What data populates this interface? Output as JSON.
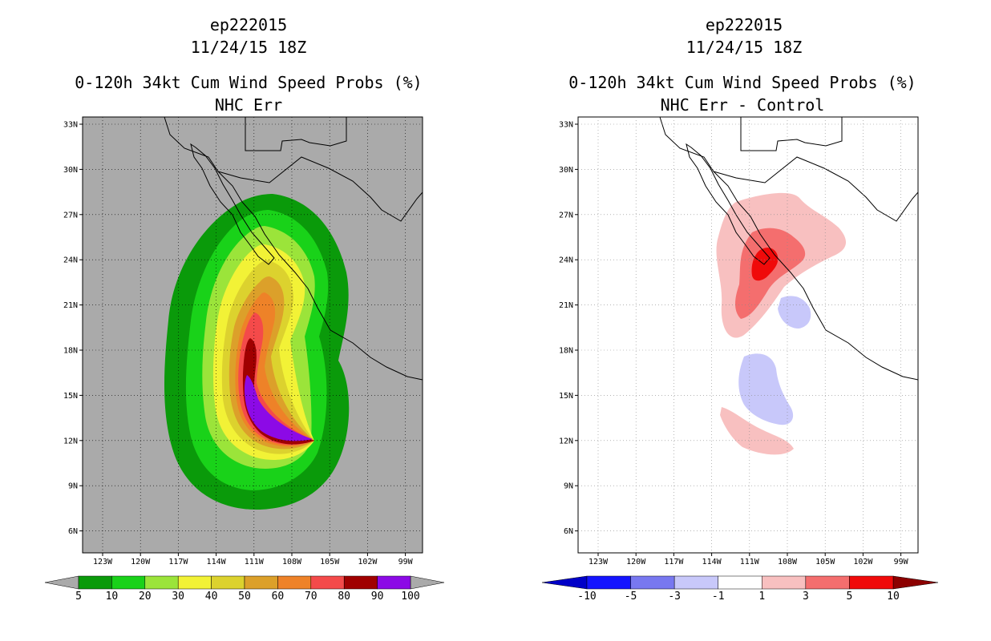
{
  "left_panel": {
    "storm_id": "ep222015",
    "datetime": "11/24/15 18Z",
    "title": "0-120h 34kt Cum Wind Speed Probs (%)",
    "subtitle": "NHC Err",
    "lat_labels": [
      "33N",
      "30N",
      "27N",
      "24N",
      "21N",
      "18N",
      "15N",
      "12N",
      "9N",
      "6N"
    ],
    "lon_labels": [
      "123W",
      "120W",
      "117W",
      "114W",
      "111W",
      "108W",
      "105W",
      "102W",
      "99W"
    ],
    "colorbar": {
      "labels": [
        "5",
        "10",
        "20",
        "30",
        "40",
        "50",
        "60",
        "70",
        "80",
        "90",
        "100"
      ],
      "colors": [
        "#0a9a0a",
        "#19d219",
        "#9be43a",
        "#f2f236",
        "#dcd22e",
        "#dca02a",
        "#ee8228",
        "#f44a4a",
        "#a00000",
        "#8c0ae6"
      ]
    }
  },
  "right_panel": {
    "storm_id": "ep222015",
    "datetime": "11/24/15 18Z",
    "title": "0-120h 34kt Cum Wind Speed Probs (%)",
    "subtitle": "NHC Err - Control",
    "lat_labels": [
      "33N",
      "30N",
      "27N",
      "24N",
      "21N",
      "18N",
      "15N",
      "12N",
      "9N",
      "6N"
    ],
    "lon_labels": [
      "123W",
      "120W",
      "117W",
      "114W",
      "111W",
      "108W",
      "105W",
      "102W",
      "99W"
    ],
    "colorbar": {
      "labels": [
        "-10",
        "-5",
        "-3",
        "-1",
        "1",
        "3",
        "5",
        "10"
      ],
      "colors": [
        "#0000c8",
        "#1414ff",
        "#7878f0",
        "#c8c8fa",
        "#ffffff",
        "#f8c0c0",
        "#f46e6e",
        "#f00a0a",
        "#8c0000"
      ]
    }
  }
}
